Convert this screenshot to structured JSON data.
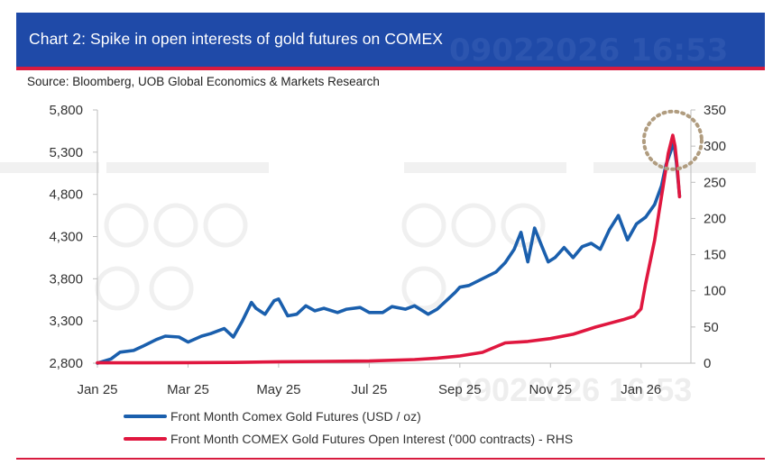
{
  "header": {
    "title": "Chart 2: Spike in open interests of gold futures on COMEX",
    "watermark": "09022026 16:53"
  },
  "source": "Source: Bloomberg, UOB Global Economics & Markets Research",
  "colors": {
    "header_bg": "#1f4aa8",
    "accent_red": "#d81b3f",
    "gold_series": "#1a5fad",
    "oi_series": "#e0173f",
    "highlight_circle": "#b09c7f"
  },
  "chart_data": {
    "type": "line",
    "title": "Chart 2: Spike in open interests of gold futures on COMEX",
    "x_tick_labels": [
      "Jan 25",
      "Mar 25",
      "May 25",
      "Jul 25",
      "Sep 25",
      "Nov 25",
      "Jan 26"
    ],
    "x_tick_months": [
      0,
      2,
      4,
      6,
      8,
      10,
      12
    ],
    "xlim_months": [
      0,
      13.1
    ],
    "left_axis": {
      "ylim": [
        2800,
        5800
      ],
      "ticks": [
        2800,
        3300,
        3800,
        4300,
        4800,
        5300,
        5800
      ],
      "tick_labels": [
        "2,800",
        "3,300",
        "3,800",
        "4,300",
        "4,800",
        "5,300",
        "5,800"
      ]
    },
    "right_axis": {
      "ylim": [
        0,
        350
      ],
      "ticks": [
        0,
        50,
        100,
        150,
        200,
        250,
        300,
        350
      ],
      "tick_labels": [
        "0",
        "50",
        "100",
        "150",
        "200",
        "250",
        "300",
        "350"
      ]
    },
    "annotation": "dotted circle highlighting late-January 2026 spike",
    "annotation_point": {
      "x": 12.7,
      "y_right": 308
    },
    "series": [
      {
        "name": "Front Month Comex Gold Futures (USD / oz)",
        "axis": "left",
        "color": "#1a5fad",
        "x": [
          0,
          0.3,
          0.5,
          0.8,
          1.0,
          1.3,
          1.5,
          1.8,
          2.0,
          2.3,
          2.5,
          2.8,
          3.0,
          3.2,
          3.4,
          3.5,
          3.7,
          3.9,
          4.0,
          4.2,
          4.4,
          4.6,
          4.8,
          5.0,
          5.3,
          5.5,
          5.8,
          6.0,
          6.3,
          6.5,
          6.8,
          7.0,
          7.3,
          7.5,
          7.7,
          7.9,
          8.0,
          8.2,
          8.5,
          8.8,
          9.0,
          9.2,
          9.35,
          9.5,
          9.65,
          9.8,
          9.95,
          10.1,
          10.3,
          10.5,
          10.7,
          10.9,
          11.1,
          11.3,
          11.5,
          11.7,
          11.9,
          12.1,
          12.3,
          12.45,
          12.55,
          12.65,
          12.72,
          12.78,
          12.85
        ],
        "values": [
          2800,
          2850,
          2930,
          2950,
          3000,
          3080,
          3120,
          3110,
          3050,
          3120,
          3150,
          3210,
          3110,
          3300,
          3520,
          3450,
          3380,
          3540,
          3560,
          3360,
          3380,
          3480,
          3420,
          3450,
          3400,
          3440,
          3460,
          3400,
          3400,
          3470,
          3440,
          3480,
          3380,
          3440,
          3540,
          3640,
          3700,
          3720,
          3800,
          3880,
          3990,
          4150,
          4350,
          4000,
          4400,
          4200,
          4000,
          4050,
          4170,
          4050,
          4180,
          4220,
          4150,
          4380,
          4550,
          4260,
          4450,
          4530,
          4680,
          4900,
          5150,
          5300,
          5420,
          5180,
          4780
        ]
      },
      {
        "name": "Front Month COMEX Gold Futures Open Interest ('000 contracts) - RHS",
        "axis": "right",
        "color": "#e0173f",
        "x": [
          0,
          1,
          2,
          3,
          4,
          5,
          6,
          7,
          7.5,
          8,
          8.5,
          9,
          9.5,
          10,
          10.5,
          11,
          11.3,
          11.6,
          11.85,
          12.0,
          12.1,
          12.2,
          12.3,
          12.4,
          12.5,
          12.6,
          12.7,
          12.75,
          12.8,
          12.85
        ],
        "values": [
          0.5,
          0.5,
          0.8,
          1,
          2,
          2.5,
          3,
          5,
          7,
          10,
          15,
          28,
          30,
          34,
          40,
          50,
          55,
          60,
          65,
          75,
          110,
          140,
          170,
          210,
          250,
          290,
          315,
          300,
          270,
          230
        ]
      }
    ]
  }
}
